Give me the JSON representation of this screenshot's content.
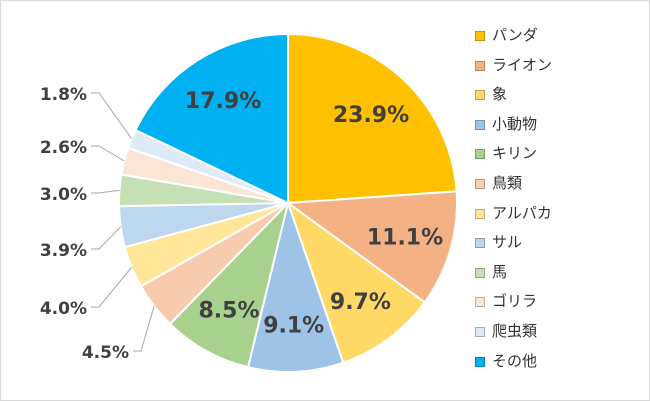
{
  "chart_data": {
    "type": "pie",
    "title": "",
    "categories": [
      "パンダ",
      "ライオン",
      "象",
      "小動物",
      "キリン",
      "鳥類",
      "アルパカ",
      "サル",
      "馬",
      "ゴリラ",
      "爬虫類",
      "その他"
    ],
    "values": [
      23.9,
      11.1,
      9.7,
      9.1,
      8.5,
      4.5,
      4.0,
      3.9,
      3.0,
      2.6,
      1.8,
      17.9
    ],
    "value_labels": [
      "23.9%",
      "11.1%",
      "9.7%",
      "9.1%",
      "8.5%",
      "4.5%",
      "4.0%",
      "3.9%",
      "3.0%",
      "2.6%",
      "1.8%",
      "17.9%"
    ],
    "colors": [
      "#FFC000",
      "#F4B183",
      "#FFD966",
      "#9DC3E6",
      "#A9D18E",
      "#F8CBAD",
      "#FFE699",
      "#BDD7EE",
      "#C5E0B4",
      "#FBE5D6",
      "#DEEBF7",
      "#00B0F0"
    ],
    "start_angle_deg": 0,
    "direction": "clockwise",
    "legend_position": "right"
  }
}
